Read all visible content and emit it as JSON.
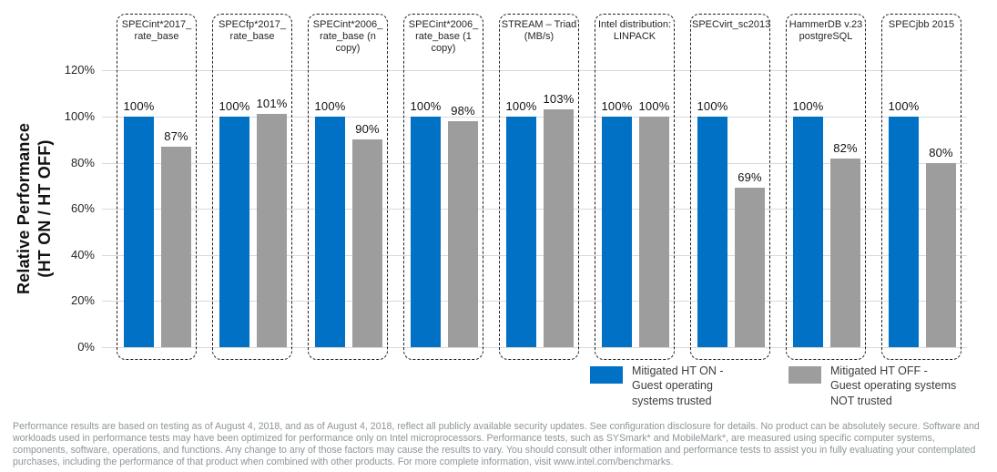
{
  "chart_data": {
    "type": "bar",
    "title": "",
    "ylabel": "Relative Performance\n(HT ON / HT OFF)",
    "xlabel": "",
    "ylim": [
      0,
      120
    ],
    "grid": true,
    "legend_position": "bottom-right",
    "y_ticks": [
      120,
      100,
      80,
      60,
      40,
      20,
      0
    ],
    "y_tick_labels": [
      "120%",
      "100%",
      "80%",
      "60%",
      "40%",
      "20%",
      "0%"
    ],
    "categories": [
      "SPECint*2017_\nrate_base",
      "SPECfp*2017_\nrate_base",
      "SPECint*2006_\nrate_base (n copy)",
      "SPECint*2006_\nrate_base (1 copy)",
      "STREAM – Triad\n(MB/s)",
      "Intel distribution:\nLINPACK",
      "SPECvirt_sc2013",
      "HammerDB v.23\npostgreSQL",
      "SPECjbb 2015"
    ],
    "series": [
      {
        "name": "Mitigated HT ON -\nGuest operating\nsystems trusted",
        "color": "#0071c5",
        "values": [
          100,
          100,
          100,
          100,
          100,
          100,
          100,
          100,
          100
        ],
        "value_labels": [
          "100%",
          "100%",
          "100%",
          "100%",
          "100%",
          "100%",
          "100%",
          "100%",
          "100%"
        ]
      },
      {
        "name": "Mitigated HT OFF -\nGuest operating systems\nNOT trusted",
        "color": "#9d9d9d",
        "values": [
          87,
          101,
          90,
          98,
          103,
          100,
          69,
          82,
          80
        ],
        "value_labels": [
          "87%",
          "101%",
          "90%",
          "98%",
          "103%",
          "100%",
          "69%",
          "82%",
          "80%"
        ]
      }
    ]
  },
  "colors": {
    "ht_on": "#0071c5",
    "ht_off": "#9d9d9d",
    "gridline": "#d9d9d9",
    "box_border": "#1f1f1f",
    "footer_text": "#8d9598"
  },
  "footer": {
    "disclaimer": "Performance results are based on testing as of August 4, 2018, and as of August 4, 2018, reflect all publicly available security updates. See configuration disclosure for details. No product can be absolutely secure. Software and workloads used in performance tests may have been optimized for performance only on Intel microprocessors. Performance tests, such as SYSmark* and MobileMark*, are measured using specific computer systems, components, software, operations, and functions. Any change to any of those factors may cause the results to vary. You should consult other information and performance tests to assist you in fully evaluating your contemplated purchases, including the performance of that product when combined with other products. For more complete information, visit www.intel.com/benchmarks."
  }
}
